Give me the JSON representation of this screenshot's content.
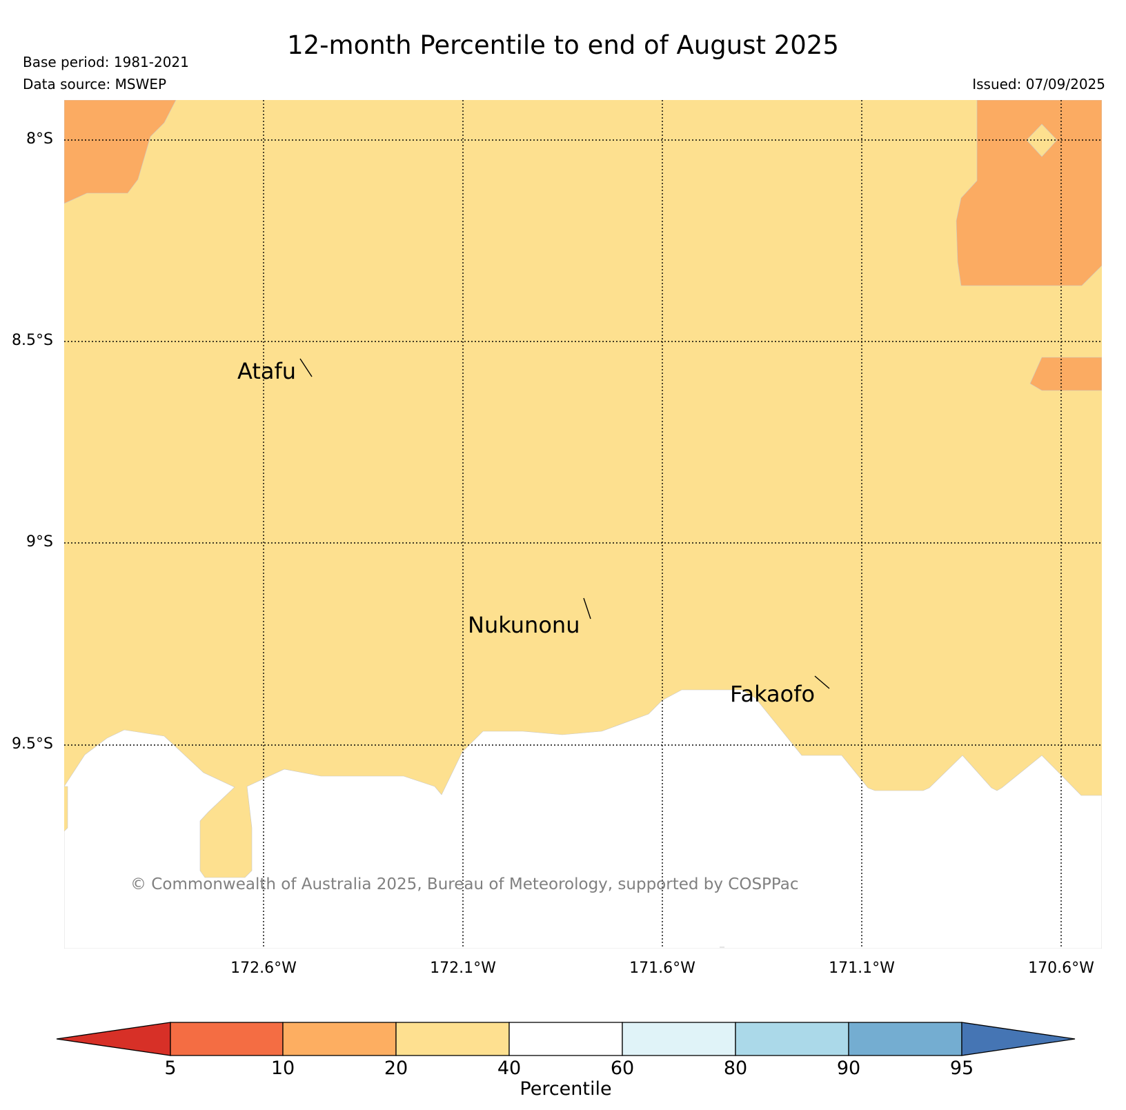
{
  "title": "12-month Percentile to end of August 2025",
  "meta": {
    "base_period": "Base period: 1981-2021",
    "data_source": "Data source: MSWEP",
    "issued": "Issued: 07/09/2025"
  },
  "map": {
    "lat_labels": [
      "8°S",
      "8.5°S",
      "9°S",
      "9.5°S"
    ],
    "lon_labels": [
      "172.6°W",
      "172.1°W",
      "171.6°W",
      "171.1°W",
      "170.6°W"
    ],
    "places": [
      "Atafu",
      "Nukunonu",
      "Fakaofo"
    ],
    "copyright": "© Commonwealth of Australia 2025, Bureau of Meteorology, supported by COSPPac",
    "fill_colors": {
      "10-20": "#fbab62",
      "20-40": "#fde08f",
      "40-60": "#ffffff"
    }
  },
  "colorbar": {
    "label": "Percentile",
    "ticks": [
      "5",
      "10",
      "20",
      "40",
      "60",
      "80",
      "90",
      "95"
    ],
    "colors": [
      "#d73027",
      "#f46d43",
      "#fdae61",
      "#fee090",
      "#ffffff",
      "#e0f3f8",
      "#abd9e9",
      "#74add1",
      "#4575b4"
    ]
  }
}
